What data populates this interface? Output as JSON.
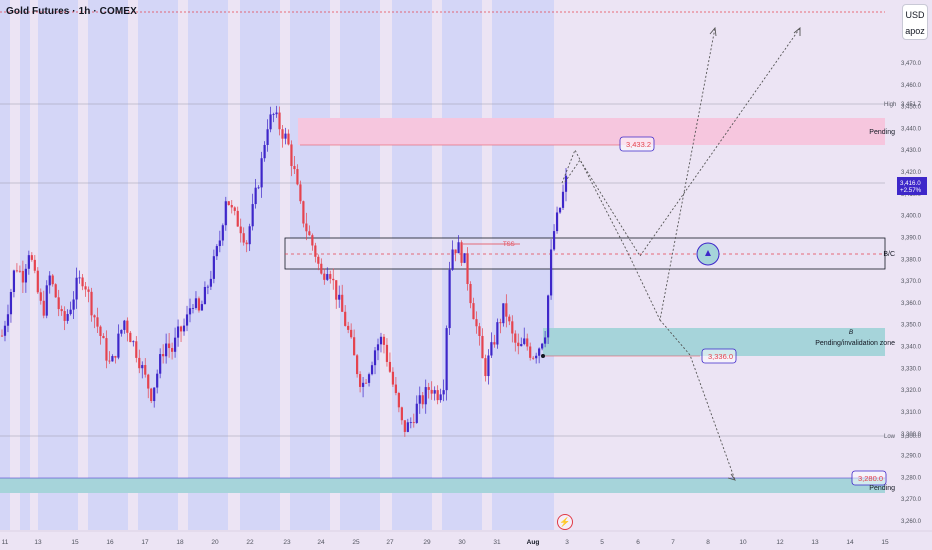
{
  "symbol_title": "Gold Futures · 1h · COMEX",
  "currency": "USD",
  "unit_label": "apoz",
  "colors": {
    "up": "#3e27c9",
    "down": "#e5434e",
    "session_shade": "#d4d6f7",
    "supply_zone": "#f6c6de",
    "demand_zone": "#a6d4da",
    "bg": "#ece4f4"
  },
  "price_axis": {
    "ticks": [
      "3,470.0",
      "3,460.0",
      "3,450.0",
      "3,440.0",
      "3,430.0",
      "3,420.0",
      "3,410.0",
      "3,400.0",
      "3,390.0",
      "3,380.0",
      "3,370.0",
      "3,360.0",
      "3,350.0",
      "3,340.0",
      "3,330.0",
      "3,320.0",
      "3,310.0",
      "3,300.0",
      "3,290.0",
      "3,280.0",
      "3,270.0",
      "3,260.0"
    ],
    "high_label": "High",
    "high_value": "3,451.7",
    "low_label": "Low",
    "low_value": "3,300.0",
    "last_price": "3,416.0",
    "change_pct": "+2.57%"
  },
  "time_axis": [
    "11",
    "13",
    "15",
    "16",
    "17",
    "18",
    "20",
    "22",
    "23",
    "24",
    "25",
    "27",
    "29",
    "30",
    "31",
    "Aug",
    "3",
    "5",
    "6",
    "7",
    "8",
    "10",
    "12",
    "13",
    "14",
    "15"
  ],
  "annotations": {
    "upper_pending": "Pending",
    "upper_level": "3,433.2",
    "tss": "TSS",
    "bc_label": "B/C",
    "b_marker": "B",
    "invalidation": "Pending/invalidation zone",
    "mid_level": "3,336.0",
    "lower_level": "3,280.0",
    "lower_pending": "Pending"
  },
  "chart_data": {
    "type": "candlestick",
    "title": "Gold Futures · 1h · COMEX",
    "y_range": [
      3260,
      3480
    ],
    "close_path": [
      3345,
      3360,
      3378,
      3372,
      3385,
      3368,
      3355,
      3372,
      3362,
      3350,
      3358,
      3368,
      3372,
      3360,
      3350,
      3340,
      3330,
      3342,
      3352,
      3344,
      3336,
      3326,
      3318,
      3330,
      3342,
      3338,
      3346,
      3350,
      3362,
      3355,
      3365,
      3376,
      3388,
      3410,
      3400,
      3396,
      3388,
      3404,
      3420,
      3442,
      3446,
      3440,
      3434,
      3420,
      3402,
      3392,
      3384,
      3372,
      3378,
      3366,
      3356,
      3346,
      3332,
      3322,
      3330,
      3340,
      3344,
      3330,
      3316,
      3302,
      3304,
      3312,
      3316,
      3322,
      3318,
      3324,
      3385,
      3386,
      3380,
      3362,
      3346,
      3328,
      3338,
      3350,
      3358,
      3345,
      3338,
      3342,
      3336,
      3340,
      3348,
      3390,
      3402,
      3416
    ]
  }
}
